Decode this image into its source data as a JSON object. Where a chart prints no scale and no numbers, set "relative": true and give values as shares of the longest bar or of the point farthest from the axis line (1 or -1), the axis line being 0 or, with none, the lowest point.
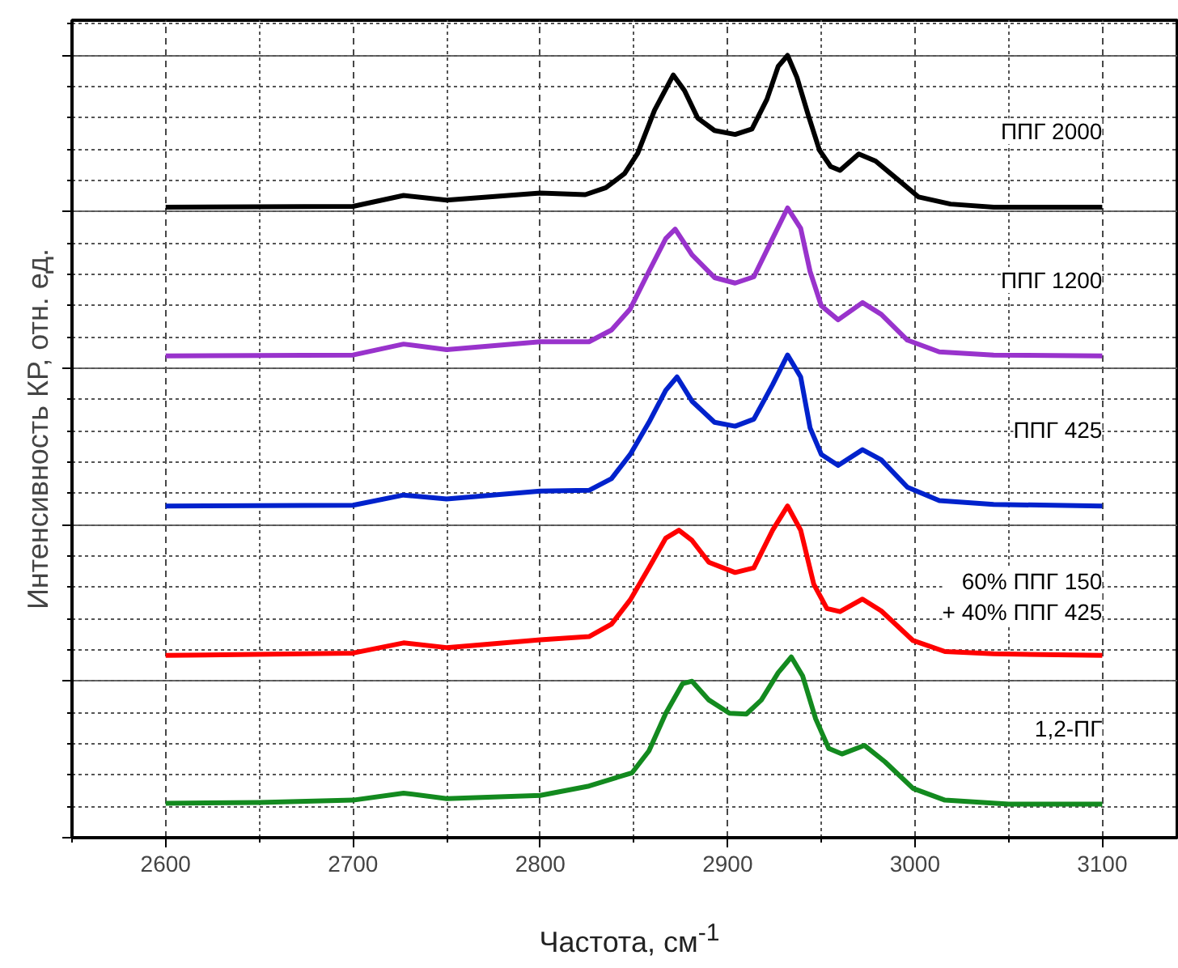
{
  "chart_data": {
    "type": "line",
    "relative": true,
    "xlabel": "Частота, см$^{-1}$",
    "ylabel": "Интенсивность КР, отн. ед.",
    "xlim": [
      2550,
      3140
    ],
    "xticks": [
      2600,
      2700,
      2800,
      2900,
      3000,
      3100
    ],
    "grid": true,
    "marker": "none",
    "line_style": "solid",
    "series": [
      {
        "name": "ППГ 2000",
        "color": "#000000",
        "x": [
          2600,
          2700,
          2727,
          2750,
          2800,
          2824,
          2835,
          2845,
          2852,
          2861,
          2871,
          2877,
          2884,
          2893,
          2904,
          2913,
          2921,
          2927,
          2932,
          2937,
          2943,
          2949,
          2955,
          2960,
          2970,
          2979,
          2991,
          3002,
          3019,
          3042,
          3100
        ],
        "values": [
          0.806,
          0.807,
          0.821,
          0.815,
          0.824,
          0.822,
          0.831,
          0.849,
          0.875,
          0.93,
          0.975,
          0.955,
          0.92,
          0.904,
          0.899,
          0.906,
          0.944,
          0.986,
          1.0,
          0.972,
          0.924,
          0.879,
          0.858,
          0.853,
          0.874,
          0.865,
          0.841,
          0.819,
          0.81,
          0.806,
          0.806
        ]
      },
      {
        "name": "ППГ 1200",
        "color": "#9933cc",
        "x": [
          2600,
          2700,
          2727,
          2750,
          2800,
          2826,
          2838,
          2848,
          2858,
          2867,
          2872,
          2881,
          2893,
          2904,
          2914,
          2924,
          2932,
          2939,
          2944,
          2950,
          2959,
          2972,
          2982,
          2996,
          3013,
          3042,
          3100
        ],
        "values": [
          0.616,
          0.617,
          0.631,
          0.624,
          0.634,
          0.634,
          0.649,
          0.676,
          0.724,
          0.766,
          0.778,
          0.745,
          0.716,
          0.709,
          0.717,
          0.766,
          0.805,
          0.779,
          0.724,
          0.68,
          0.662,
          0.684,
          0.669,
          0.636,
          0.621,
          0.617,
          0.616
        ]
      },
      {
        "name": "ППГ 425",
        "color": "#0022cc",
        "x": [
          2600,
          2700,
          2727,
          2750,
          2800,
          2826,
          2838,
          2848,
          2858,
          2867,
          2873,
          2881,
          2893,
          2904,
          2914,
          2924,
          2932,
          2939,
          2944,
          2950,
          2959,
          2972,
          2982,
          2996,
          3013,
          3042,
          3100
        ],
        "values": [
          0.424,
          0.425,
          0.438,
          0.433,
          0.443,
          0.444,
          0.459,
          0.49,
          0.531,
          0.572,
          0.589,
          0.558,
          0.531,
          0.526,
          0.535,
          0.579,
          0.617,
          0.589,
          0.524,
          0.49,
          0.476,
          0.496,
          0.483,
          0.448,
          0.431,
          0.426,
          0.424
        ]
      },
      {
        "name": "60% ППГ 150\n+ 40% ППГ 425",
        "color": "#ff0000",
        "x": [
          2600,
          2700,
          2727,
          2750,
          2800,
          2826,
          2838,
          2848,
          2858,
          2867,
          2874,
          2881,
          2890,
          2904,
          2914,
          2924,
          2932,
          2939,
          2946,
          2953,
          2960,
          2972,
          2982,
          2999,
          3016,
          3042,
          3100
        ],
        "values": [
          0.233,
          0.236,
          0.249,
          0.243,
          0.253,
          0.257,
          0.273,
          0.304,
          0.345,
          0.383,
          0.393,
          0.38,
          0.352,
          0.339,
          0.345,
          0.393,
          0.424,
          0.393,
          0.324,
          0.293,
          0.289,
          0.305,
          0.29,
          0.252,
          0.238,
          0.235,
          0.233
        ]
      },
      {
        "name": "1,2-ПГ",
        "color": "#138a1f",
        "x": [
          2600,
          2650,
          2700,
          2727,
          2750,
          2775,
          2800,
          2826,
          2849,
          2858,
          2867,
          2876,
          2881,
          2890,
          2901,
          2910,
          2918,
          2927,
          2934,
          2940,
          2947,
          2954,
          2961,
          2973,
          2984,
          2999,
          3016,
          3050,
          3100
        ],
        "values": [
          0.044,
          0.045,
          0.048,
          0.057,
          0.05,
          0.052,
          0.054,
          0.066,
          0.083,
          0.111,
          0.159,
          0.197,
          0.2,
          0.176,
          0.159,
          0.158,
          0.176,
          0.211,
          0.231,
          0.207,
          0.152,
          0.114,
          0.107,
          0.118,
          0.097,
          0.063,
          0.048,
          0.043,
          0.043
        ]
      }
    ]
  }
}
